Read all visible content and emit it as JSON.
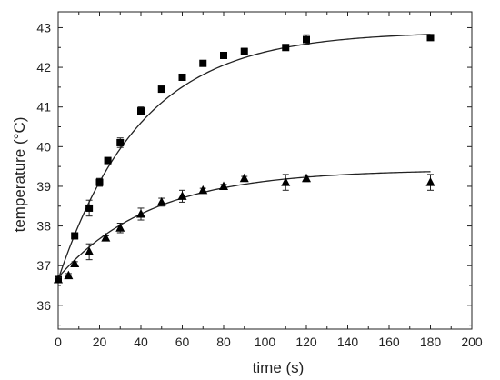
{
  "chart_data": {
    "type": "scatter",
    "title": "",
    "xlabel": "time (s)",
    "ylabel": "temperature (°C)",
    "xlim": [
      0,
      200
    ],
    "ylim": [
      35.4,
      43.4
    ],
    "x_ticks": [
      0,
      20,
      40,
      60,
      80,
      100,
      120,
      140,
      160,
      180,
      200
    ],
    "y_ticks": [
      36,
      37,
      38,
      39,
      40,
      41,
      42,
      43
    ],
    "grid": false,
    "legend": "none",
    "series": [
      {
        "marker": "square",
        "color": "#000000",
        "points": [
          {
            "x": 0,
            "y": 36.65,
            "err": 0.05
          },
          {
            "x": 8,
            "y": 37.75,
            "err": 0.05
          },
          {
            "x": 15,
            "y": 38.45,
            "err": 0.2
          },
          {
            "x": 20,
            "y": 39.1,
            "err": 0.1
          },
          {
            "x": 24,
            "y": 39.65,
            "err": 0.05
          },
          {
            "x": 30,
            "y": 40.1,
            "err": 0.12
          },
          {
            "x": 40,
            "y": 40.9,
            "err": 0.1
          },
          {
            "x": 50,
            "y": 41.45,
            "err": 0.05
          },
          {
            "x": 60,
            "y": 41.75,
            "err": 0.05
          },
          {
            "x": 70,
            "y": 42.1,
            "err": 0.05
          },
          {
            "x": 80,
            "y": 42.3,
            "err": 0.05
          },
          {
            "x": 90,
            "y": 42.4,
            "err": 0.08
          },
          {
            "x": 110,
            "y": 42.5,
            "err": 0.05
          },
          {
            "x": 120,
            "y": 42.7,
            "err": 0.12
          },
          {
            "x": 180,
            "y": 42.75,
            "err": 0.05
          }
        ],
        "fit": {
          "model": "exponential",
          "a": 42.9,
          "b": 6.25,
          "tau": 40
        }
      },
      {
        "marker": "triangle",
        "color": "#000000",
        "points": [
          {
            "x": 0,
            "y": 36.65,
            "err": 0.05
          },
          {
            "x": 5,
            "y": 36.75,
            "err": 0.05
          },
          {
            "x": 8,
            "y": 37.05,
            "err": 0.05
          },
          {
            "x": 15,
            "y": 37.35,
            "err": 0.2
          },
          {
            "x": 23,
            "y": 37.7,
            "err": 0.05
          },
          {
            "x": 30,
            "y": 37.95,
            "err": 0.12
          },
          {
            "x": 40,
            "y": 38.3,
            "err": 0.15
          },
          {
            "x": 50,
            "y": 38.6,
            "err": 0.1
          },
          {
            "x": 60,
            "y": 38.75,
            "err": 0.15
          },
          {
            "x": 70,
            "y": 38.9,
            "err": 0.05
          },
          {
            "x": 80,
            "y": 39.0,
            "err": 0.05
          },
          {
            "x": 90,
            "y": 39.2,
            "err": 0.05
          },
          {
            "x": 110,
            "y": 39.1,
            "err": 0.2
          },
          {
            "x": 120,
            "y": 39.2,
            "err": 0.08
          },
          {
            "x": 180,
            "y": 39.1,
            "err": 0.2
          }
        ],
        "fit": {
          "model": "exponential",
          "a": 39.42,
          "b": 2.72,
          "tau": 45
        }
      }
    ]
  }
}
